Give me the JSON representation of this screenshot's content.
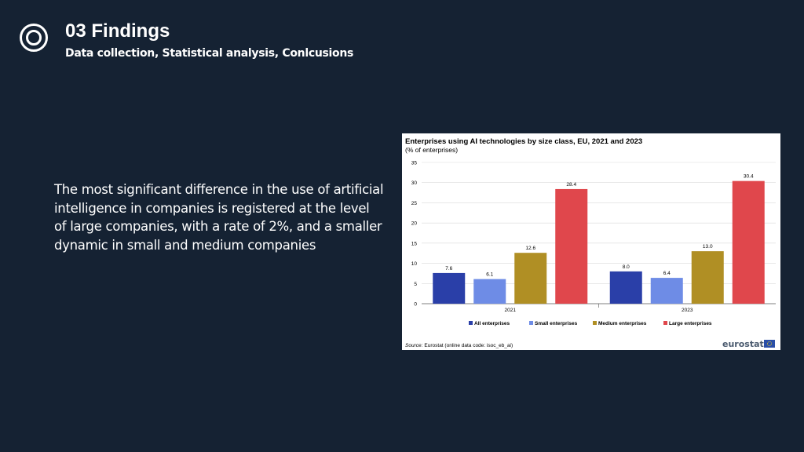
{
  "slide": {
    "title": "03 Findings",
    "subtitle": "Data collection, Statistical analysis,  Conlcusions",
    "body": "The most significant difference in the use of artificial intelligence in companies is registered at the level of large companies, with a rate of 2%, and a smaller dynamic in small and medium companies",
    "logo_icon": "target-circle-icon"
  },
  "colors": {
    "background": "#152233",
    "text": "#ffffff",
    "series": [
      "#2a3fa8",
      "#6e8ce6",
      "#b08f24",
      "#e0474c"
    ]
  },
  "chart_data": {
    "type": "bar",
    "title": "Enterprises using AI technologies by size class, EU, 2021 and 2023",
    "subtitle": "(% of enterprises)",
    "categories": [
      "2021",
      "2023"
    ],
    "series": [
      {
        "name": "All enterprises",
        "values": [
          7.6,
          8.0
        ]
      },
      {
        "name": "Small enterprises",
        "values": [
          6.1,
          6.4
        ]
      },
      {
        "name": "Medium enterprises",
        "values": [
          12.6,
          13.0
        ]
      },
      {
        "name": "Large enterprises",
        "values": [
          28.4,
          30.4
        ]
      }
    ],
    "ylim": [
      0,
      35
    ],
    "yticks": [
      0,
      5,
      10,
      15,
      20,
      25,
      30,
      35
    ],
    "grid": true,
    "legend": "bottom",
    "source_label": "Source:",
    "source_text": "Eurostat (online data code: isoc_eb_ai)",
    "brand": "eurostat"
  }
}
